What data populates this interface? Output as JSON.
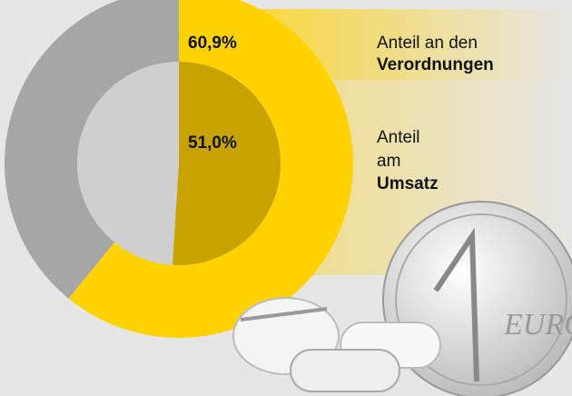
{
  "chart_data": {
    "type": "pie",
    "series": [
      {
        "name_lines": [
          "Anteil an den",
          "Verordnungen"
        ],
        "bold_line": 1,
        "values": [
          60.9
        ],
        "value_labels": [
          "60,9%"
        ],
        "color": "#ffd200",
        "rest_color": "#a6a6a6"
      },
      {
        "name_lines": [
          "Anteil",
          "am",
          "Umsatz"
        ],
        "bold_line": 2,
        "values": [
          51.0
        ],
        "value_labels": [
          "51,0%"
        ],
        "color": "#c7a200",
        "rest_color": "#cfcfcf"
      }
    ]
  }
}
